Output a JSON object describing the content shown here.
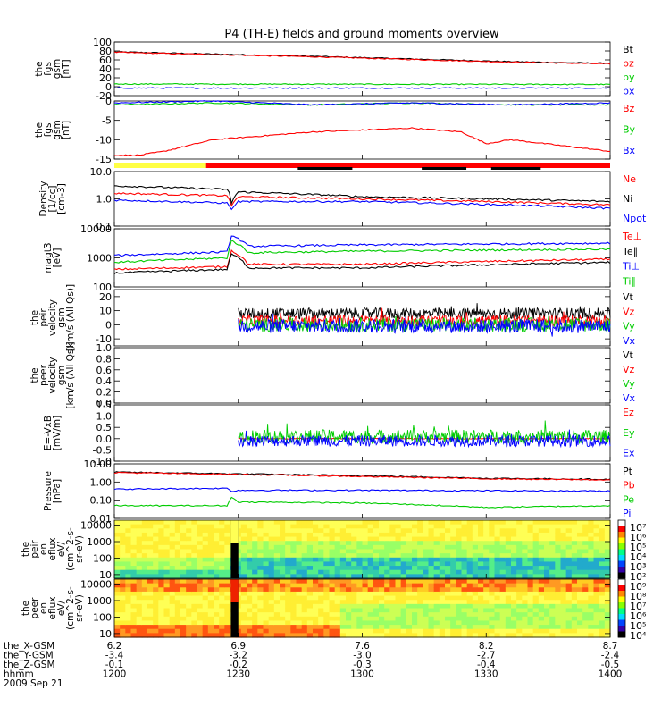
{
  "title": "P4 (TH-E) fields and ground moments overview",
  "chart_data": [
    {
      "id": "fgs_gsm",
      "type": "line",
      "ylabel": [
        "the",
        "fgs",
        "gsm",
        "[nT]"
      ],
      "ylim": [
        -20,
        100
      ],
      "yticks": [
        "100",
        "80",
        "60",
        "40",
        "20",
        "0",
        "-20"
      ],
      "ytick_values": [
        100,
        80,
        60,
        40,
        20,
        0,
        -20
      ],
      "series": [
        {
          "name": "Bt",
          "color": "#000000",
          "x": [
            0,
            0.2,
            0.4,
            0.5,
            0.7,
            0.8,
            1
          ],
          "values": [
            78,
            73,
            68,
            65,
            59,
            56,
            52
          ]
        },
        {
          "name": "bz",
          "color": "#ff0000",
          "x": [
            0,
            0.2,
            0.4,
            0.5,
            0.7,
            0.8,
            1
          ],
          "values": [
            77,
            72,
            67,
            64,
            58,
            55,
            51
          ]
        },
        {
          "name": "by",
          "color": "#00cc00",
          "x": [
            0,
            1
          ],
          "values": [
            6,
            5
          ]
        },
        {
          "name": "bx",
          "color": "#0000ff",
          "x": [
            0,
            1
          ],
          "values": [
            -3,
            -3
          ]
        }
      ]
    },
    {
      "id": "fgs_gsm_zoom",
      "type": "line",
      "ylabel": [
        "the",
        "fgs",
        "gsm",
        "[nT]"
      ],
      "ylim": [
        -15,
        0
      ],
      "yticks": [
        "0",
        "-5",
        "-10",
        "-15"
      ],
      "ytick_values": [
        0,
        -5,
        -10,
        -15
      ],
      "series": [
        {
          "name": "Bz",
          "color": "#ff0000",
          "x": [
            0,
            0.05,
            0.1,
            0.2,
            0.3,
            0.4,
            0.5,
            0.6,
            0.7,
            0.75,
            0.8,
            1
          ],
          "values": [
            -14,
            -14,
            -13,
            -10,
            -9,
            -8,
            -7.5,
            -7,
            -8,
            -11,
            -10,
            -13
          ]
        },
        {
          "name": "By",
          "color": "#00cc00",
          "x": [
            0,
            0.2,
            0.4,
            0.6,
            0.8,
            1
          ],
          "values": [
            -1,
            -0.5,
            -1,
            -0.5,
            -1,
            -1
          ]
        },
        {
          "name": "Bx",
          "color": "#0000ff",
          "x": [
            0,
            0.2,
            0.4,
            0.6,
            0.8,
            1
          ],
          "values": [
            -0.5,
            0,
            -1,
            -0.5,
            -1,
            -0.5
          ]
        }
      ]
    },
    {
      "id": "density",
      "type": "line",
      "scale": "log",
      "ylabel": [
        "Density",
        "[1/cc]",
        "[cm-3]"
      ],
      "ylim": [
        0.1,
        10
      ],
      "yticks": [
        "10.0",
        "1.0",
        "0.1"
      ],
      "ytick_values": [
        10,
        1,
        0.1
      ],
      "series": [
        {
          "name": "Ne",
          "color": "#ff0000",
          "x": [
            0,
            0.23,
            0.235,
            0.25,
            0.5,
            1
          ],
          "values": [
            1.6,
            1.3,
            0.45,
            1.2,
            1.0,
            0.6
          ]
        },
        {
          "name": "Ni",
          "color": "#000000",
          "x": [
            0,
            0.23,
            0.235,
            0.25,
            0.5,
            1
          ],
          "values": [
            3.0,
            2.2,
            0.6,
            1.8,
            1.2,
            0.8
          ]
        },
        {
          "name": "Npot",
          "color": "#0000ff",
          "x": [
            0,
            0.23,
            0.235,
            0.25,
            0.5,
            1
          ],
          "values": [
            0.9,
            0.7,
            0.35,
            0.8,
            0.8,
            0.45
          ]
        }
      ]
    },
    {
      "id": "temperature",
      "type": "line",
      "scale": "log",
      "ylabel": [
        "magt3",
        "[eV]"
      ],
      "ylim": [
        100,
        10000
      ],
      "yticks": [
        "10000",
        "1000",
        "100"
      ],
      "ytick_values": [
        10000,
        1000,
        100
      ],
      "series": [
        {
          "name": "Te⊥",
          "color": "#ff0000",
          "x": [
            0,
            0.23,
            0.235,
            0.27,
            0.5,
            1
          ],
          "values": [
            400,
            500,
            1800,
            600,
            600,
            900
          ]
        },
        {
          "name": "Te∥",
          "color": "#000000",
          "x": [
            0,
            0.23,
            0.235,
            0.27,
            0.5,
            1
          ],
          "values": [
            300,
            400,
            1400,
            450,
            450,
            700
          ]
        },
        {
          "name": "Ti⊥",
          "color": "#0000ff",
          "x": [
            0,
            0.23,
            0.235,
            0.27,
            0.5,
            1
          ],
          "values": [
            1200,
            1600,
            6000,
            2500,
            2800,
            3200
          ]
        },
        {
          "name": "Ti∥",
          "color": "#00cc00",
          "x": [
            0,
            0.23,
            0.235,
            0.27,
            0.5,
            1
          ],
          "values": [
            700,
            1000,
            4000,
            1500,
            1700,
            2000
          ]
        }
      ]
    },
    {
      "id": "peir_velocity",
      "type": "line",
      "ylabel": [
        "the",
        "peir",
        "velocity",
        "gsm",
        "[km/s (All Qs)]"
      ],
      "ylim": [
        -15,
        25
      ],
      "yticks": [
        "20",
        "10",
        "0",
        "-10"
      ],
      "ytick_values": [
        20,
        10,
        0,
        -10
      ],
      "data_start": 0.25,
      "series": [
        {
          "name": "Vt",
          "color": "#000000",
          "mean": 8,
          "amp": 4
        },
        {
          "name": "Vz",
          "color": "#ff0000",
          "mean": 3,
          "amp": 4
        },
        {
          "name": "Vy",
          "color": "#00cc00",
          "mean": 0,
          "amp": 5
        },
        {
          "name": "Vx",
          "color": "#0000ff",
          "mean": -1,
          "amp": 5
        }
      ]
    },
    {
      "id": "peer_velocity",
      "type": "line",
      "ylabel": [
        "the",
        "peer",
        "velocity",
        "gsm",
        "[km/s (All Qs)]"
      ],
      "ylim": [
        0,
        1
      ],
      "yticks": [
        "1.0",
        "0.8",
        "0.6",
        "0.4",
        "0.2",
        "0.0"
      ],
      "ytick_values": [
        1.0,
        0.8,
        0.6,
        0.4,
        0.2,
        0.0
      ],
      "series": [
        {
          "name": "Vt",
          "color": "#000000"
        },
        {
          "name": "Vz",
          "color": "#ff0000"
        },
        {
          "name": "Vy",
          "color": "#00cc00"
        },
        {
          "name": "Vx",
          "color": "#0000ff"
        }
      ]
    },
    {
      "id": "efield",
      "type": "line",
      "ylabel": [
        "E=-VxB",
        "[mV/m]"
      ],
      "ylim": [
        -1.0,
        1.5
      ],
      "yticks": [
        "1.5",
        "1.0",
        "0.5",
        "0.0",
        "-0.5",
        "-1.0"
      ],
      "ytick_values": [
        1.5,
        1.0,
        0.5,
        0.0,
        -0.5,
        -1.0
      ],
      "data_start": 0.25,
      "series": [
        {
          "name": "Ez",
          "color": "#ff0000",
          "mean": 0,
          "amp": 0.02
        },
        {
          "name": "Ey",
          "color": "#00cc00",
          "mean": 0.1,
          "amp": 0.3
        },
        {
          "name": "Ex",
          "color": "#0000ff",
          "mean": -0.1,
          "amp": 0.25
        }
      ]
    },
    {
      "id": "pressure",
      "type": "line",
      "scale": "log",
      "ylabel": [
        "Pressure",
        "[nPa]"
      ],
      "ylim": [
        0.01,
        10
      ],
      "yticks": [
        "10.00",
        "1.00",
        "0.10",
        "0.01"
      ],
      "ytick_values": [
        10,
        1,
        0.1,
        0.01
      ],
      "series": [
        {
          "name": "Pt",
          "color": "#000000",
          "x": [
            0,
            0.25,
            0.5,
            0.75,
            1
          ],
          "values": [
            3.5,
            2.8,
            2.2,
            1.6,
            1.4
          ]
        },
        {
          "name": "Pb",
          "color": "#ff0000",
          "x": [
            0,
            0.25,
            0.5,
            0.75,
            1
          ],
          "values": [
            3.3,
            2.6,
            2.0,
            1.5,
            1.3
          ]
        },
        {
          "name": "Pe",
          "color": "#00cc00",
          "x": [
            0,
            0.23,
            0.235,
            0.25,
            0.5,
            0.75,
            1
          ],
          "values": [
            0.05,
            0.05,
            0.15,
            0.08,
            0.07,
            0.04,
            0.05
          ]
        },
        {
          "name": "Pi",
          "color": "#0000ff",
          "x": [
            0,
            0.23,
            0.235,
            0.25,
            0.5,
            1
          ],
          "values": [
            0.4,
            0.45,
            0.3,
            0.35,
            0.35,
            0.32
          ]
        }
      ]
    },
    {
      "id": "peir_spectrogram",
      "type": "heatmap",
      "ylabel": [
        "the",
        "peir",
        "en",
        "eflux",
        "eV/",
        "(cm^2-s-",
        "sr-eV)"
      ],
      "yticks": [
        "10000",
        "1000",
        "100",
        "10"
      ],
      "ytick_values": [
        10000,
        1000,
        100,
        10
      ],
      "ylim": [
        6,
        20000
      ],
      "colorbar_labels": [
        "10⁷",
        "10⁶",
        "10⁵",
        "10⁴",
        "10³",
        "10²"
      ],
      "gap_x": [
        0.235,
        0.25
      ]
    },
    {
      "id": "peer_spectrogram",
      "type": "heatmap",
      "ylabel": [
        "the",
        "peer",
        "en",
        "eflux",
        "eV/",
        "(cm^2-s-",
        "sr-eV)"
      ],
      "yticks": [
        "10000",
        "1000",
        "100",
        "10"
      ],
      "ytick_values": [
        10000,
        1000,
        100,
        10
      ],
      "ylim": [
        6,
        20000
      ],
      "colorbar_labels": [
        "10⁹",
        "10⁸",
        "10⁷",
        "10⁶",
        "10⁵",
        "10⁴"
      ],
      "gap_x": [
        0.235,
        0.25
      ]
    }
  ],
  "flag_bar": [
    {
      "color": "#ffff44",
      "from": 0,
      "to": 0.185
    },
    {
      "color": "#ff0000",
      "from": 0.185,
      "to": 1
    },
    {
      "color": "#000000",
      "from": 0.37,
      "to": 0.48
    },
    {
      "color": "#000000",
      "from": 0.62,
      "to": 0.71
    },
    {
      "color": "#000000",
      "from": 0.76,
      "to": 0.86
    }
  ],
  "x_axis": {
    "rows": [
      {
        "label": "the_X-GSM",
        "values": [
          "6.2",
          "6.9",
          "7.6",
          "8.2",
          "8.7"
        ]
      },
      {
        "label": "the_Y-GSM",
        "values": [
          "-3.4",
          "-3.2",
          "-3.0",
          "-2.7",
          "-2.4"
        ]
      },
      {
        "label": "the_Z-GSM",
        "values": [
          "-0.1",
          "-0.2",
          "-0.3",
          "-0.4",
          "-0.5"
        ]
      },
      {
        "label": "hhmm",
        "values": [
          "1200",
          "1230",
          "1300",
          "1330",
          "1400"
        ]
      }
    ],
    "date": "2009 Sep 21"
  }
}
